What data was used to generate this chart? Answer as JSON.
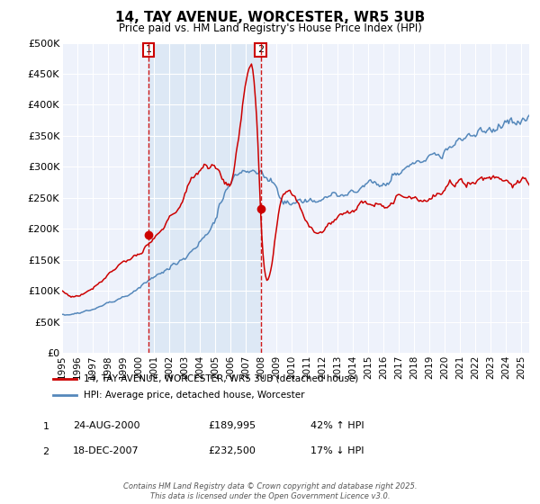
{
  "title": "14, TAY AVENUE, WORCESTER, WR5 3UB",
  "subtitle": "Price paid vs. HM Land Registry's House Price Index (HPI)",
  "legend_line1": "14, TAY AVENUE, WORCESTER, WR5 3UB (detached house)",
  "legend_line2": "HPI: Average price, detached house, Worcester",
  "annotation1_date": "24-AUG-2000",
  "annotation1_price": "£189,995",
  "annotation1_hpi": "42% ↑ HPI",
  "annotation2_date": "18-DEC-2007",
  "annotation2_price": "£232,500",
  "annotation2_hpi": "17% ↓ HPI",
  "footer": "Contains HM Land Registry data © Crown copyright and database right 2025.\nThis data is licensed under the Open Government Licence v3.0.",
  "red_color": "#cc0000",
  "blue_color": "#5588bb",
  "shade_color": "#dde8f5",
  "background_color": "#eef2fb",
  "grid_color": "#ffffff",
  "ylim": [
    0,
    500000
  ],
  "yticks": [
    0,
    50000,
    100000,
    150000,
    200000,
    250000,
    300000,
    350000,
    400000,
    450000,
    500000
  ],
  "ytick_labels": [
    "£0",
    "£50K",
    "£100K",
    "£150K",
    "£200K",
    "£250K",
    "£300K",
    "£350K",
    "£400K",
    "£450K",
    "£500K"
  ],
  "sale1_year": 2000.65,
  "sale1_y": 189995,
  "sale2_year": 2007.97,
  "sale2_y": 232500,
  "xmin": 1995,
  "xmax": 2025.5
}
